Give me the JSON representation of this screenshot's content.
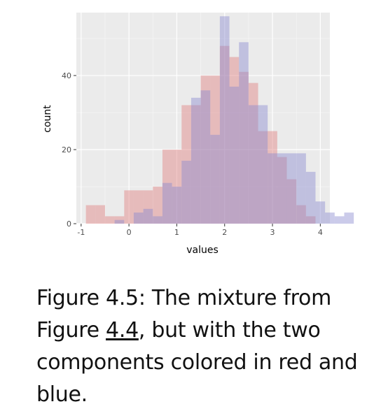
{
  "chart_data": {
    "type": "histogram",
    "xlabel": "values",
    "ylabel": "count",
    "xlim": [
      -1.1,
      4.2
    ],
    "ylim": [
      0,
      57
    ],
    "x_ticks": [
      "-1",
      "0",
      "1",
      "2",
      "3",
      "4"
    ],
    "y_ticks": [
      "0",
      "20",
      "40"
    ],
    "bin_width": 0.2,
    "background": "#ebebeb",
    "grid": true,
    "series": [
      {
        "color": "#e08080",
        "opacity": 0.45,
        "bins": [
          {
            "x0": -0.9,
            "count": 5
          },
          {
            "x0": -0.7,
            "count": 5
          },
          {
            "x0": -0.5,
            "count": 2
          },
          {
            "x0": -0.3,
            "count": 2
          },
          {
            "x0": -0.1,
            "count": 9
          },
          {
            "x0": 0.1,
            "count": 9
          },
          {
            "x0": 0.3,
            "count": 9
          },
          {
            "x0": 0.5,
            "count": 10
          },
          {
            "x0": 0.7,
            "count": 20
          },
          {
            "x0": 0.9,
            "count": 20
          },
          {
            "x0": 1.1,
            "count": 32
          },
          {
            "x0": 1.3,
            "count": 32
          },
          {
            "x0": 1.5,
            "count": 40
          },
          {
            "x0": 1.7,
            "count": 40
          },
          {
            "x0": 1.9,
            "count": 48
          },
          {
            "x0": 2.1,
            "count": 45
          },
          {
            "x0": 2.3,
            "count": 41
          },
          {
            "x0": 2.5,
            "count": 38
          },
          {
            "x0": 2.7,
            "count": 25
          },
          {
            "x0": 2.9,
            "count": 25
          },
          {
            "x0": 3.1,
            "count": 18
          },
          {
            "x0": 3.3,
            "count": 12
          },
          {
            "x0": 3.5,
            "count": 5
          },
          {
            "x0": 3.7,
            "count": 2
          }
        ]
      },
      {
        "color": "#8c8cd0",
        "opacity": 0.45,
        "bins": [
          {
            "x0": -0.3,
            "count": 1
          },
          {
            "x0": 0.1,
            "count": 3
          },
          {
            "x0": 0.3,
            "count": 4
          },
          {
            "x0": 0.5,
            "count": 2
          },
          {
            "x0": 0.7,
            "count": 11
          },
          {
            "x0": 0.9,
            "count": 10
          },
          {
            "x0": 1.1,
            "count": 17
          },
          {
            "x0": 1.3,
            "count": 34
          },
          {
            "x0": 1.5,
            "count": 36
          },
          {
            "x0": 1.7,
            "count": 24
          },
          {
            "x0": 1.9,
            "count": 56
          },
          {
            "x0": 2.1,
            "count": 37
          },
          {
            "x0": 2.3,
            "count": 49
          },
          {
            "x0": 2.5,
            "count": 32
          },
          {
            "x0": 2.7,
            "count": 32
          },
          {
            "x0": 2.9,
            "count": 19
          },
          {
            "x0": 3.1,
            "count": 19
          },
          {
            "x0": 3.3,
            "count": 19
          },
          {
            "x0": 3.5,
            "count": 19
          },
          {
            "x0": 3.7,
            "count": 14
          },
          {
            "x0": 3.9,
            "count": 6
          },
          {
            "x0": 4.1,
            "count": 3
          },
          {
            "x0": 4.3,
            "count": 2
          },
          {
            "x0": 4.5,
            "count": 3
          }
        ]
      }
    ]
  },
  "caption": {
    "prefix": "Figure 4.5: The mixture from Figure ",
    "link": "4.4",
    "suffix": ", but with the two components colored in red and blue."
  }
}
